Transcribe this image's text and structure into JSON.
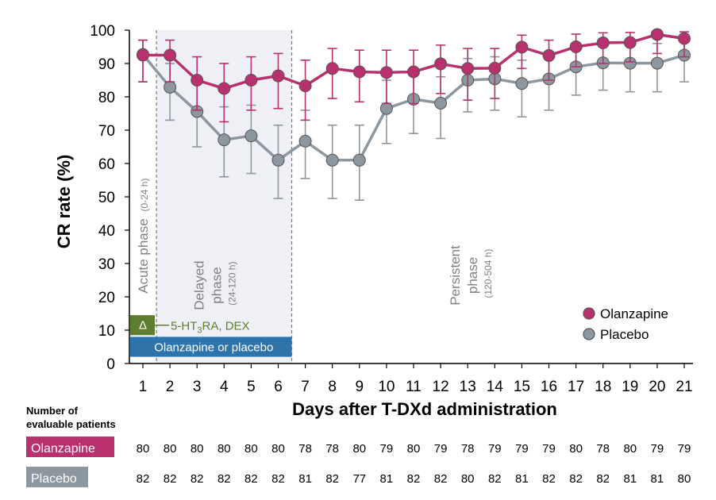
{
  "chart_data": {
    "type": "line",
    "title": "",
    "xlabel": "Days after T-DXd administration",
    "ylabel": "CR rate (%)",
    "ylim": [
      0,
      100
    ],
    "y_ticks": [
      0,
      10,
      20,
      30,
      40,
      50,
      60,
      70,
      80,
      90,
      100
    ],
    "x": [
      1,
      2,
      3,
      4,
      5,
      6,
      7,
      8,
      9,
      10,
      11,
      12,
      13,
      14,
      15,
      16,
      17,
      18,
      19,
      20,
      21
    ],
    "legend_position": "bottom-right",
    "series": [
      {
        "name": "Olanzapine",
        "color": "#b8306e",
        "values": [
          92.5,
          92.5,
          85.0,
          82.5,
          85.0,
          86.3,
          83.3,
          88.5,
          87.5,
          87.3,
          87.5,
          89.9,
          88.5,
          88.6,
          94.9,
          92.4,
          95.0,
          96.2,
          96.3,
          98.7,
          97.5
        ],
        "lower": [
          84.5,
          84.5,
          76.0,
          72.5,
          76.0,
          76.5,
          73.0,
          79.5,
          78.5,
          78.0,
          78.0,
          81.0,
          79.0,
          79.5,
          88.5,
          85.0,
          89.0,
          90.0,
          90.5,
          93.0,
          92.0
        ],
        "upper": [
          97.0,
          97.0,
          92.0,
          90.0,
          92.0,
          93.0,
          91.0,
          94.5,
          94.0,
          94.0,
          94.0,
          95.5,
          94.5,
          94.5,
          98.5,
          97.0,
          98.8,
          99.2,
          99.3,
          99.9,
          99.5
        ]
      },
      {
        "name": "Placebo",
        "color": "#8c979f",
        "values": [
          92.7,
          82.9,
          75.6,
          67.1,
          68.3,
          61.0,
          66.7,
          61.0,
          61.0,
          76.5,
          79.3,
          78.1,
          85.0,
          85.4,
          84.0,
          85.4,
          89.0,
          90.2,
          90.1,
          90.1,
          92.5
        ],
        "lower": [
          84.5,
          73.0,
          65.0,
          56.0,
          57.0,
          49.5,
          55.5,
          49.5,
          49.0,
          66.0,
          69.0,
          67.5,
          75.5,
          76.0,
          74.0,
          76.0,
          80.5,
          82.0,
          81.5,
          81.5,
          84.5
        ],
        "upper": [
          97.0,
          90.0,
          84.0,
          77.0,
          77.5,
          71.5,
          76.0,
          71.5,
          71.5,
          85.0,
          87.0,
          86.0,
          91.5,
          92.0,
          91.0,
          92.0,
          95.0,
          95.5,
          96.0,
          96.0,
          97.5
        ]
      }
    ],
    "phases": [
      {
        "label": "Acute phase",
        "range": "(0-24 h)"
      },
      {
        "label": "Delayed",
        "label2": "phase",
        "range": "(24-120 h)"
      },
      {
        "label": "Persistent",
        "label2": "phase",
        "range": "(120-504 h)"
      }
    ],
    "bars": {
      "treatment_label": "Olanzapine or placebo",
      "treatment_color": "#2e74aa",
      "antiemetic_symbol": "Δ",
      "antiemetic_prefix": "5-HT",
      "antiemetic_sub": "3",
      "antiemetic_suffix": "RA, DEX",
      "antiemetic_color": "#5e7d2e"
    },
    "patients_table": {
      "header_line1": "Number of",
      "header_line2": "evaluable patients",
      "rows": [
        {
          "label": "Olanzapine",
          "color": "#b8306e",
          "counts": [
            80,
            80,
            80,
            80,
            80,
            80,
            78,
            78,
            80,
            79,
            80,
            79,
            78,
            79,
            79,
            79,
            80,
            78,
            80,
            79,
            79
          ]
        },
        {
          "label": "Placebo",
          "color": "#8c979f",
          "counts": [
            82,
            82,
            82,
            82,
            82,
            82,
            81,
            82,
            77,
            81,
            82,
            82,
            80,
            82,
            81,
            82,
            82,
            82,
            81,
            81,
            80
          ]
        }
      ]
    }
  }
}
